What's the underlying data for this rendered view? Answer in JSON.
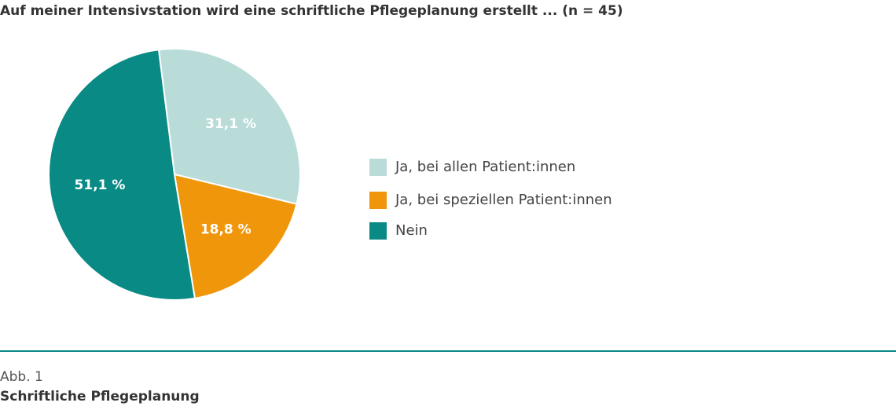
{
  "chart_data": {
    "type": "pie",
    "title": "Auf meiner Intensivstation wird eine schriftliche Pflegeplanung erstellt ... (n = 45)",
    "categories": [
      "Ja, bei allen Patient:innen",
      "Ja, bei speziellen Patient:innen",
      "Nein"
    ],
    "values": [
      31.1,
      18.8,
      51.1
    ],
    "value_labels": [
      "31,1 %",
      "18,8 %",
      "51,1 %"
    ],
    "colors": [
      "#b9dcd9",
      "#f0960a",
      "#0a8a84"
    ],
    "figure_label": "Abb. 1",
    "caption": "Schriftliche Pflegeplanung"
  }
}
